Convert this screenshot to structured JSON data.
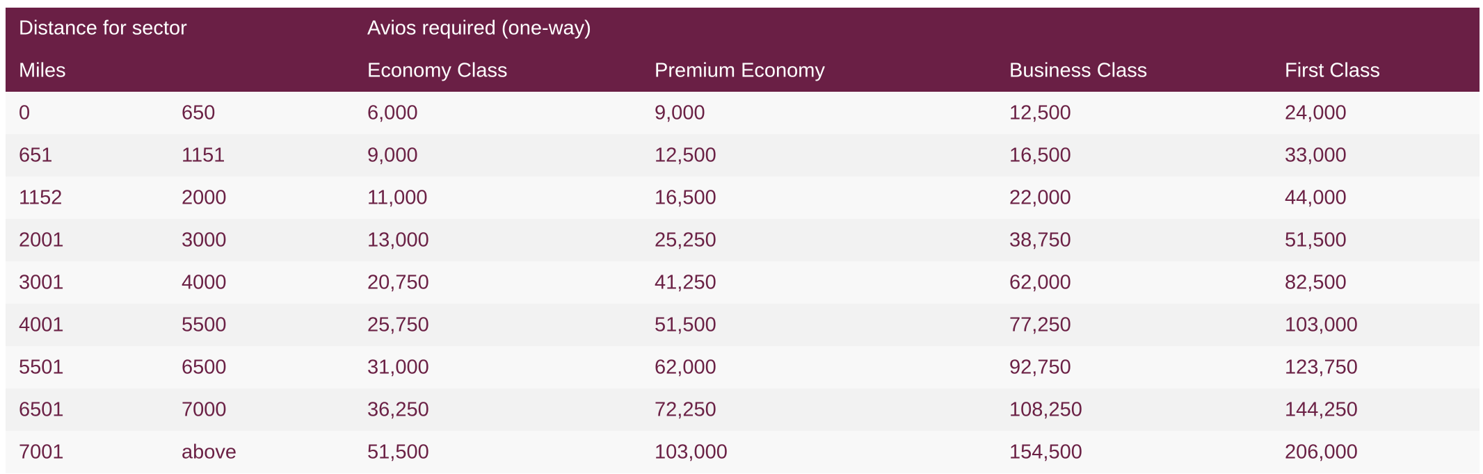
{
  "header": {
    "group_labels": [
      "Distance for sector",
      "Avios required (one-way)"
    ],
    "columns": [
      "Miles",
      "Economy Class",
      "Premium Economy",
      "Business Class",
      "First Class"
    ]
  },
  "table": {
    "rows": [
      [
        "0",
        "650",
        "6,000",
        "9,000",
        "12,500",
        "24,000"
      ],
      [
        "651",
        "1151",
        "9,000",
        "12,500",
        "16,500",
        "33,000"
      ],
      [
        "1152",
        "2000",
        "11,000",
        "16,500",
        "22,000",
        "44,000"
      ],
      [
        "2001",
        "3000",
        "13,000",
        "25,250",
        "38,750",
        "51,500"
      ],
      [
        "3001",
        "4000",
        "20,750",
        "41,250",
        "62,000",
        "82,500"
      ],
      [
        "4001",
        "5500",
        "25,750",
        "51,500",
        "77,250",
        "103,000"
      ],
      [
        "5501",
        "6500",
        "31,000",
        "62,000",
        "92,750",
        "123,750"
      ],
      [
        "6501",
        "7000",
        "36,250",
        "72,250",
        "108,250",
        "144,250"
      ],
      [
        "7001",
        "above",
        "51,500",
        "103,000",
        "154,500",
        "206,000"
      ]
    ]
  }
}
